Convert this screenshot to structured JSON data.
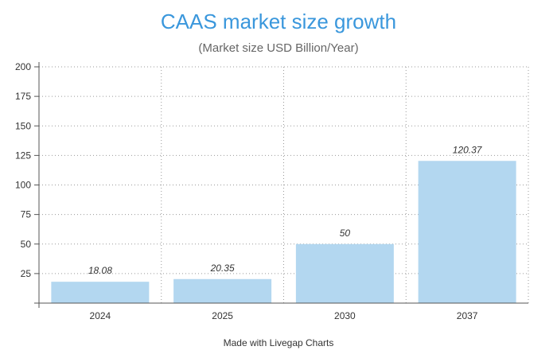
{
  "chart_data": {
    "type": "bar",
    "title": "CAAS market size growth",
    "subtitle": "(Market size USD Billion/Year)",
    "categories": [
      "2024",
      "2025",
      "2030",
      "2037"
    ],
    "values": [
      18.08,
      20.35,
      50,
      120.37
    ],
    "value_labels": [
      "18.08",
      "20.35",
      "50",
      "120.37"
    ],
    "xlabel": "",
    "ylabel": "",
    "ylim": [
      0,
      200
    ],
    "yticks": [
      25,
      50,
      75,
      100,
      125,
      150,
      175,
      200
    ],
    "grid": true,
    "bar_color": "#b3d7f0",
    "title_color": "#3a97dc"
  },
  "footer": {
    "credit": "Made with Livegap Charts"
  }
}
